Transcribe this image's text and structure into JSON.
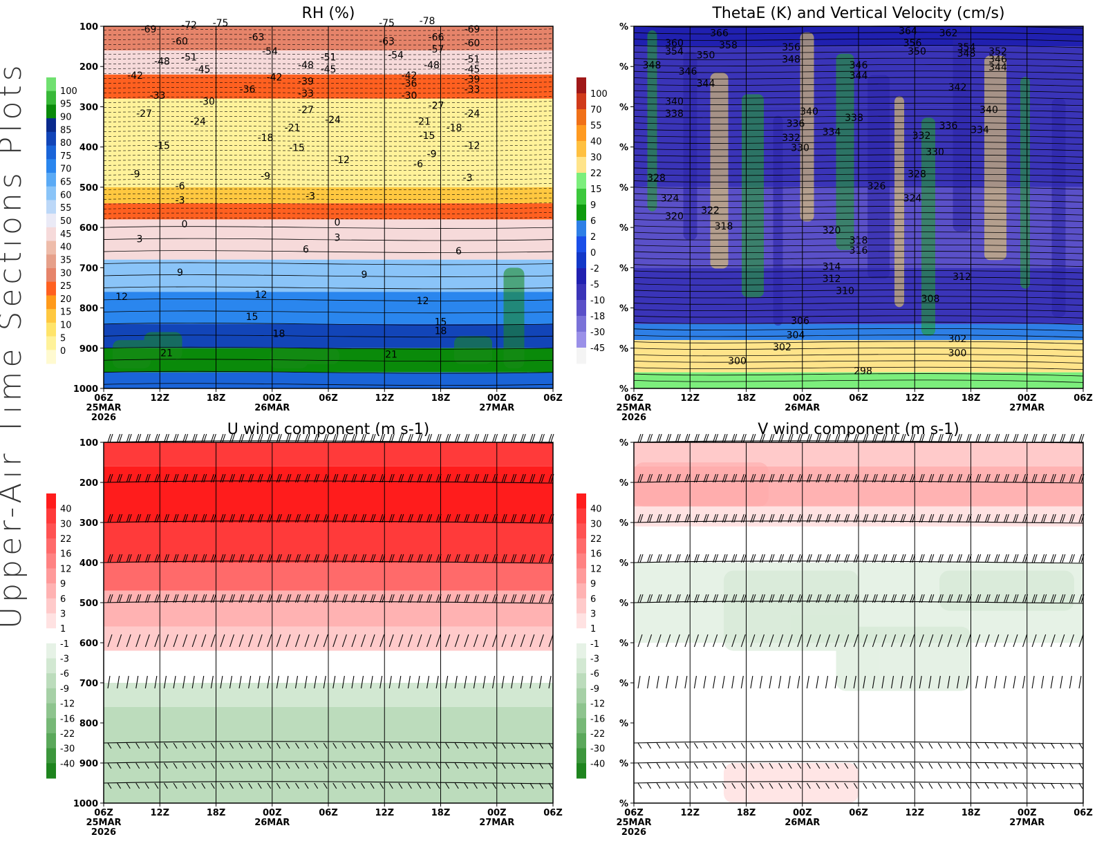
{
  "figure": {
    "side_title": "Upper-Air Time Sections Plots"
  },
  "time_axis": {
    "ticks": [
      "06Z",
      "12Z",
      "18Z",
      "00Z",
      "06Z",
      "12Z",
      "18Z",
      "00Z",
      "06Z"
    ],
    "date_labels": [
      {
        "tick_index": 0,
        "text": "25MAR"
      },
      {
        "tick_index": 3,
        "text": "26MAR"
      },
      {
        "tick_index": 7,
        "text": "27MAR"
      }
    ],
    "year_label": "2026"
  },
  "chart_data": [
    {
      "id": "rh",
      "type": "heatmap",
      "title": "RH (%)",
      "ylabel_ticks": [
        "100",
        "200",
        "300",
        "400",
        "500",
        "600",
        "700",
        "800",
        "900",
        "1000"
      ],
      "y_range_hPa": [
        100,
        1000
      ],
      "colorbar_labels": [
        "100",
        "95",
        "90",
        "85",
        "80",
        "75",
        "70",
        "65",
        "60",
        "55",
        "50",
        "45",
        "40",
        "35",
        "30",
        "25",
        "20",
        "15",
        "10",
        "5",
        "0"
      ],
      "colorbar_colors": [
        "#70e070",
        "#38b838",
        "#0a8a0a",
        "#0a2a8c",
        "#1245b8",
        "#1a64d8",
        "#2a86ee",
        "#5aaaf5",
        "#8ac4f8",
        "#bcd8f8",
        "#eaeaf6",
        "#f6dada",
        "#eebcaa",
        "#e6a08a",
        "#e6846a",
        "#ff6020",
        "#ff9a1a",
        "#ffc840",
        "#ffe46a",
        "#fff29a",
        "#fffad0"
      ],
      "vertical_layers": [
        {
          "from_hPa": 100,
          "to_hPa": 160,
          "rh_percent": 30
        },
        {
          "from_hPa": 160,
          "to_hPa": 220,
          "rh_percent": 45
        },
        {
          "from_hPa": 220,
          "to_hPa": 280,
          "rh_percent": 25
        },
        {
          "from_hPa": 280,
          "to_hPa": 500,
          "rh_percent": 8
        },
        {
          "from_hPa": 500,
          "to_hPa": 540,
          "rh_percent": 18
        },
        {
          "from_hPa": 540,
          "to_hPa": 580,
          "rh_percent": 25
        },
        {
          "from_hPa": 580,
          "to_hPa": 680,
          "rh_percent": 45
        },
        {
          "from_hPa": 680,
          "to_hPa": 760,
          "rh_percent": 60
        },
        {
          "from_hPa": 760,
          "to_hPa": 840,
          "rh_percent": 70
        },
        {
          "from_hPa": 840,
          "to_hPa": 900,
          "rh_percent": 80
        },
        {
          "from_hPa": 900,
          "to_hPa": 960,
          "rh_percent": 90
        },
        {
          "from_hPa": 960,
          "to_hPa": 1000,
          "rh_percent": 75
        }
      ],
      "contour_labels": [
        {
          "text": "-69",
          "t": 0.1,
          "p": 110
        },
        {
          "text": "-72",
          "t": 0.19,
          "p": 100
        },
        {
          "text": "-75",
          "t": 0.26,
          "p": 95
        },
        {
          "text": "-60",
          "t": 0.17,
          "p": 140
        },
        {
          "text": "-63",
          "t": 0.34,
          "p": 130
        },
        {
          "text": "-54",
          "t": 0.37,
          "p": 165
        },
        {
          "text": "-48",
          "t": 0.13,
          "p": 190
        },
        {
          "text": "-51",
          "t": 0.19,
          "p": 180
        },
        {
          "text": "-45",
          "t": 0.22,
          "p": 210
        },
        {
          "text": "-42",
          "t": 0.07,
          "p": 225
        },
        {
          "text": "-36",
          "t": 0.32,
          "p": 260
        },
        {
          "text": "-42",
          "t": 0.38,
          "p": 230
        },
        {
          "text": "-48",
          "t": 0.45,
          "p": 200
        },
        {
          "text": "-51",
          "t": 0.5,
          "p": 180
        },
        {
          "text": "-45",
          "t": 0.5,
          "p": 210
        },
        {
          "text": "-39",
          "t": 0.45,
          "p": 240
        },
        {
          "text": "-33",
          "t": 0.45,
          "p": 270
        },
        {
          "text": "-33",
          "t": 0.12,
          "p": 275
        },
        {
          "text": "-30",
          "t": 0.23,
          "p": 290
        },
        {
          "text": "-27",
          "t": 0.09,
          "p": 320
        },
        {
          "text": "-24",
          "t": 0.21,
          "p": 340
        },
        {
          "text": "-27",
          "t": 0.45,
          "p": 310
        },
        {
          "text": "-24",
          "t": 0.51,
          "p": 335
        },
        {
          "text": "-21",
          "t": 0.42,
          "p": 355
        },
        {
          "text": "-18",
          "t": 0.36,
          "p": 380
        },
        {
          "text": "-15",
          "t": 0.43,
          "p": 405
        },
        {
          "text": "-15",
          "t": 0.13,
          "p": 400
        },
        {
          "text": "-12",
          "t": 0.53,
          "p": 435
        },
        {
          "text": "-9",
          "t": 0.07,
          "p": 470
        },
        {
          "text": "-9",
          "t": 0.36,
          "p": 475
        },
        {
          "text": "-6",
          "t": 0.17,
          "p": 500
        },
        {
          "text": "-3",
          "t": 0.17,
          "p": 535
        },
        {
          "text": "-3",
          "t": 0.46,
          "p": 525
        },
        {
          "text": "-75",
          "t": 0.63,
          "p": 95
        },
        {
          "text": "-78",
          "t": 0.72,
          "p": 90
        },
        {
          "text": "-69",
          "t": 0.82,
          "p": 110
        },
        {
          "text": "-66",
          "t": 0.74,
          "p": 130
        },
        {
          "text": "-63",
          "t": 0.63,
          "p": 140
        },
        {
          "text": "-60",
          "t": 0.82,
          "p": 145
        },
        {
          "text": "-57",
          "t": 0.74,
          "p": 160
        },
        {
          "text": "-54",
          "t": 0.65,
          "p": 175
        },
        {
          "text": "-51",
          "t": 0.82,
          "p": 185
        },
        {
          "text": "-48",
          "t": 0.73,
          "p": 200
        },
        {
          "text": "-45",
          "t": 0.82,
          "p": 210
        },
        {
          "text": "-42",
          "t": 0.68,
          "p": 225
        },
        {
          "text": "-39",
          "t": 0.82,
          "p": 235
        },
        {
          "text": "-36",
          "t": 0.68,
          "p": 245
        },
        {
          "text": "-33",
          "t": 0.82,
          "p": 260
        },
        {
          "text": "-30",
          "t": 0.68,
          "p": 275
        },
        {
          "text": "-27",
          "t": 0.74,
          "p": 300
        },
        {
          "text": "-24",
          "t": 0.82,
          "p": 320
        },
        {
          "text": "-21",
          "t": 0.71,
          "p": 340
        },
        {
          "text": "-18",
          "t": 0.78,
          "p": 355
        },
        {
          "text": "-15",
          "t": 0.72,
          "p": 375
        },
        {
          "text": "-12",
          "t": 0.82,
          "p": 400
        },
        {
          "text": "-9",
          "t": 0.73,
          "p": 420
        },
        {
          "text": "-6",
          "t": 0.7,
          "p": 445
        },
        {
          "text": "-3",
          "t": 0.81,
          "p": 480
        },
        {
          "text": "0",
          "t": 0.18,
          "p": 595
        },
        {
          "text": "0",
          "t": 0.52,
          "p": 590
        },
        {
          "text": "3",
          "t": 0.08,
          "p": 632
        },
        {
          "text": "3",
          "t": 0.52,
          "p": 628
        },
        {
          "text": "6",
          "t": 0.45,
          "p": 657
        },
        {
          "text": "6",
          "t": 0.79,
          "p": 662
        },
        {
          "text": "9",
          "t": 0.17,
          "p": 715
        },
        {
          "text": "9",
          "t": 0.58,
          "p": 720
        },
        {
          "text": "12",
          "t": 0.04,
          "p": 775
        },
        {
          "text": "12",
          "t": 0.35,
          "p": 770
        },
        {
          "text": "12",
          "t": 0.71,
          "p": 785
        },
        {
          "text": "15",
          "t": 0.33,
          "p": 825
        },
        {
          "text": "15",
          "t": 0.75,
          "p": 838
        },
        {
          "text": "18",
          "t": 0.39,
          "p": 867
        },
        {
          "text": "18",
          "t": 0.75,
          "p": 860
        },
        {
          "text": "21",
          "t": 0.14,
          "p": 915
        },
        {
          "text": "21",
          "t": 0.64,
          "p": 918
        }
      ]
    },
    {
      "id": "thetae",
      "type": "heatmap",
      "title": "ThetaE (K) and Vertical Velocity (cm/s)",
      "ylabel_ticks": [
        "%",
        "%",
        "%",
        "%",
        "%",
        "%",
        "%",
        "%",
        "%",
        "%"
      ],
      "y_range_hPa": [
        100,
        1000
      ],
      "colorbar_labels": [
        "100",
        "70",
        "55",
        "40",
        "30",
        "22",
        "15",
        "9",
        "6",
        "2",
        "0",
        "-2",
        "-5",
        "-10",
        "-18",
        "-30",
        "-45"
      ],
      "colorbar_colors": [
        "#a01818",
        "#d03a1a",
        "#f07018",
        "#ff9a20",
        "#ffc040",
        "#ffe48a",
        "#7cee7c",
        "#3cc83c",
        "#0d9a0d",
        "#2e7fe6",
        "#1a4ee8",
        "#1238c8",
        "#2020b0",
        "#3a34b8",
        "#5a50c8",
        "#7a72d8",
        "#9a90e8",
        "#f4f4f4"
      ],
      "vertical_layers": [
        {
          "from_hPa": 100,
          "to_hPa": 150,
          "omega_cm_s": -4
        },
        {
          "from_hPa": 150,
          "to_hPa": 300,
          "omega_cm_s": -7
        },
        {
          "from_hPa": 300,
          "to_hPa": 500,
          "omega_cm_s": -7
        },
        {
          "from_hPa": 500,
          "to_hPa": 700,
          "omega_cm_s": -12
        },
        {
          "from_hPa": 700,
          "to_hPa": 840,
          "omega_cm_s": -9
        },
        {
          "from_hPa": 840,
          "to_hPa": 880,
          "omega_cm_s": 4
        },
        {
          "from_hPa": 880,
          "to_hPa": 960,
          "omega_cm_s": 25
        },
        {
          "from_hPa": 960,
          "to_hPa": 1000,
          "omega_cm_s": 15
        }
      ],
      "thetae_contour_labels": [
        {
          "text": "366",
          "t": 0.19,
          "p": 120
        },
        {
          "text": "364",
          "t": 0.61,
          "p": 115
        },
        {
          "text": "362",
          "t": 0.7,
          "p": 120
        },
        {
          "text": "360",
          "t": 0.09,
          "p": 145
        },
        {
          "text": "358",
          "t": 0.21,
          "p": 150
        },
        {
          "text": "356",
          "t": 0.35,
          "p": 155
        },
        {
          "text": "356",
          "t": 0.62,
          "p": 145
        },
        {
          "text": "354",
          "t": 0.09,
          "p": 165
        },
        {
          "text": "354",
          "t": 0.74,
          "p": 155
        },
        {
          "text": "352",
          "t": 0.81,
          "p": 165
        },
        {
          "text": "350",
          "t": 0.16,
          "p": 175
        },
        {
          "text": "350",
          "t": 0.63,
          "p": 165
        },
        {
          "text": "348",
          "t": 0.04,
          "p": 200
        },
        {
          "text": "348",
          "t": 0.35,
          "p": 185
        },
        {
          "text": "348",
          "t": 0.74,
          "p": 170
        },
        {
          "text": "346",
          "t": 0.12,
          "p": 215
        },
        {
          "text": "346",
          "t": 0.5,
          "p": 200
        },
        {
          "text": "346",
          "t": 0.81,
          "p": 185
        },
        {
          "text": "344",
          "t": 0.16,
          "p": 245
        },
        {
          "text": "344",
          "t": 0.5,
          "p": 225
        },
        {
          "text": "344",
          "t": 0.81,
          "p": 205
        },
        {
          "text": "342",
          "t": 0.72,
          "p": 255
        },
        {
          "text": "340",
          "t": 0.09,
          "p": 290
        },
        {
          "text": "340",
          "t": 0.39,
          "p": 315
        },
        {
          "text": "340",
          "t": 0.79,
          "p": 310
        },
        {
          "text": "338",
          "t": 0.09,
          "p": 320
        },
        {
          "text": "338",
          "t": 0.49,
          "p": 330
        },
        {
          "text": "336",
          "t": 0.36,
          "p": 345
        },
        {
          "text": "336",
          "t": 0.7,
          "p": 350
        },
        {
          "text": "334",
          "t": 0.44,
          "p": 365
        },
        {
          "text": "334",
          "t": 0.77,
          "p": 360
        },
        {
          "text": "332",
          "t": 0.35,
          "p": 380
        },
        {
          "text": "332",
          "t": 0.64,
          "p": 375
        },
        {
          "text": "330",
          "t": 0.37,
          "p": 405
        },
        {
          "text": "330",
          "t": 0.67,
          "p": 415
        },
        {
          "text": "328",
          "t": 0.05,
          "p": 480
        },
        {
          "text": "328",
          "t": 0.63,
          "p": 470
        },
        {
          "text": "326",
          "t": 0.54,
          "p": 500
        },
        {
          "text": "324",
          "t": 0.08,
          "p": 530
        },
        {
          "text": "324",
          "t": 0.62,
          "p": 530
        },
        {
          "text": "322",
          "t": 0.17,
          "p": 560
        },
        {
          "text": "320",
          "t": 0.09,
          "p": 575
        },
        {
          "text": "320",
          "t": 0.44,
          "p": 610
        },
        {
          "text": "318",
          "t": 0.2,
          "p": 600
        },
        {
          "text": "318",
          "t": 0.5,
          "p": 635
        },
        {
          "text": "316",
          "t": 0.5,
          "p": 660
        },
        {
          "text": "314",
          "t": 0.44,
          "p": 700
        },
        {
          "text": "312",
          "t": 0.44,
          "p": 730
        },
        {
          "text": "312",
          "t": 0.73,
          "p": 725
        },
        {
          "text": "310",
          "t": 0.47,
          "p": 760
        },
        {
          "text": "308",
          "t": 0.66,
          "p": 780
        },
        {
          "text": "306",
          "t": 0.37,
          "p": 835
        },
        {
          "text": "304",
          "t": 0.36,
          "p": 870
        },
        {
          "text": "302",
          "t": 0.33,
          "p": 900
        },
        {
          "text": "302",
          "t": 0.72,
          "p": 880
        },
        {
          "text": "300",
          "t": 0.23,
          "p": 935
        },
        {
          "text": "300",
          "t": 0.72,
          "p": 915
        },
        {
          "text": "298",
          "t": 0.51,
          "p": 960
        }
      ]
    },
    {
      "id": "uwind",
      "type": "heatmap",
      "title": "U wind component (m s-1)",
      "ylabel_ticks": [
        "100",
        "200",
        "300",
        "400",
        "500",
        "600",
        "700",
        "800",
        "900",
        "1000"
      ],
      "y_range_hPa": [
        100,
        1000
      ],
      "colorbar_labels": [
        "40",
        "30",
        "22",
        "16",
        "12",
        "9",
        "6",
        "3",
        "1",
        "-1",
        "-3",
        "-6",
        "-9",
        "-12",
        "-16",
        "-22",
        "-30",
        "-40"
      ],
      "colorbar_colors": [
        "#ff1c1c",
        "#ff3a3a",
        "#ff5252",
        "#ff6a6a",
        "#ff8282",
        "#ff9a9a",
        "#ffb2b2",
        "#ffcaca",
        "#ffe2e2",
        "#ffffff",
        "#e6f2e6",
        "#d2e8d2",
        "#bcdcbc",
        "#a6d0a6",
        "#8ec48e",
        "#76b876",
        "#5aa85a",
        "#3c963c",
        "#1e841e"
      ],
      "vertical_layers": [
        {
          "from_hPa": 100,
          "to_hPa": 160,
          "u_m_s": 33
        },
        {
          "from_hPa": 160,
          "to_hPa": 300,
          "u_m_s": 42
        },
        {
          "from_hPa": 300,
          "to_hPa": 400,
          "u_m_s": 34
        },
        {
          "from_hPa": 400,
          "to_hPa": 470,
          "u_m_s": 18
        },
        {
          "from_hPa": 470,
          "to_hPa": 560,
          "u_m_s": 8
        },
        {
          "from_hPa": 560,
          "to_hPa": 620,
          "u_m_s": 4
        },
        {
          "from_hPa": 620,
          "to_hPa": 700,
          "u_m_s": 0
        },
        {
          "from_hPa": 700,
          "to_hPa": 760,
          "u_m_s": -4
        },
        {
          "from_hPa": 760,
          "to_hPa": 1000,
          "u_m_s": -8
        }
      ],
      "barb_levels_hPa": [
        100,
        200,
        300,
        400,
        500,
        600,
        700,
        850,
        900,
        950
      ]
    },
    {
      "id": "vwind",
      "type": "heatmap",
      "title": "V wind component (m s-1)",
      "ylabel_ticks": [
        "%",
        "%",
        "%",
        "%",
        "%",
        "%",
        "%",
        "%",
        "%",
        "%"
      ],
      "y_range_hPa": [
        100,
        1000
      ],
      "colorbar_labels": [
        "40",
        "30",
        "22",
        "16",
        "12",
        "9",
        "6",
        "3",
        "1",
        "-1",
        "-3",
        "-6",
        "-9",
        "-12",
        "-16",
        "-22",
        "-30",
        "-40"
      ],
      "colorbar_colors": [
        "#ff1c1c",
        "#ff3a3a",
        "#ff5252",
        "#ff6a6a",
        "#ff8282",
        "#ff9a9a",
        "#ffb2b2",
        "#ffcaca",
        "#ffe2e2",
        "#ffffff",
        "#e6f2e6",
        "#d2e8d2",
        "#bcdcbc",
        "#a6d0a6",
        "#8ec48e",
        "#76b876",
        "#5aa85a",
        "#3c963c",
        "#1e841e"
      ],
      "vertical_layers": [
        {
          "from_hPa": 100,
          "to_hPa": 160,
          "v_m_s": 3
        },
        {
          "from_hPa": 160,
          "to_hPa": 260,
          "v_m_s": 8
        },
        {
          "from_hPa": 260,
          "to_hPa": 310,
          "v_m_s": 2
        },
        {
          "from_hPa": 310,
          "to_hPa": 400,
          "v_m_s": 0
        },
        {
          "from_hPa": 400,
          "to_hPa": 600,
          "v_m_s": -2
        },
        {
          "from_hPa": 600,
          "to_hPa": 1000,
          "v_m_s": 0
        }
      ],
      "barb_levels_hPa": [
        100,
        200,
        300,
        400,
        500,
        600,
        700,
        850,
        900,
        950
      ]
    }
  ]
}
